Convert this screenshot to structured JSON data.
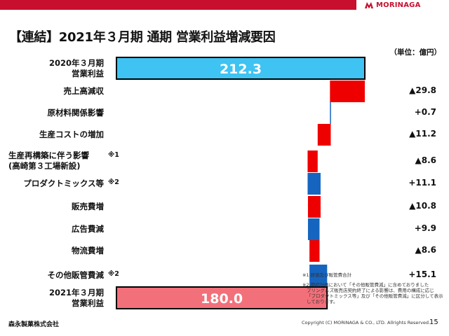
{
  "header": {
    "brand": "MORINAGA",
    "brand_color": "#c8102e",
    "logo_icon": "morinaga-angel-mark-icon"
  },
  "slide_title": "【連結】2021年３月期 通期 営業利益増減要因",
  "unit": "（単位：億円）",
  "rows": [
    {
      "label_lines": [
        "2020年３月期",
        "営業利益"
      ],
      "value_label": ""
    },
    {
      "label_lines": [
        "売上高減収"
      ],
      "value_label": "▲29.8"
    },
    {
      "label_lines": [
        "原材料関係影響"
      ],
      "value_label": "+0.7"
    },
    {
      "label_lines": [
        "生産コストの増加"
      ],
      "value_label": "▲11.2"
    },
    {
      "label_lines": [
        "生産再構築に伴う影響",
        "(高崎第３工場新設)"
      ],
      "note": "※1",
      "value_label": "▲8.6"
    },
    {
      "label_lines": [
        "プロダクトミックス等"
      ],
      "note": "※2",
      "value_label": "+11.1"
    },
    {
      "label_lines": [
        "販売費増"
      ],
      "value_label": "▲10.8"
    },
    {
      "label_lines": [
        "広告費減"
      ],
      "value_label": "+9.9"
    },
    {
      "label_lines": [
        "物流費増"
      ],
      "value_label": "▲8.6"
    },
    {
      "label_lines": [
        "その他販管費減"
      ],
      "note": "※2",
      "value_label": "+15.1"
    },
    {
      "label_lines": [
        "2021年３月期",
        "営業利益"
      ],
      "value_label": ""
    }
  ],
  "chart_data": {
    "type": "waterfall",
    "start": {
      "name": "2020年３月期 営業利益",
      "value": 212.3,
      "label": "212.3"
    },
    "steps": [
      {
        "name": "売上高減収",
        "value": -29.8
      },
      {
        "name": "原材料関係影響",
        "value": 0.7
      },
      {
        "name": "生産コストの増加",
        "value": -11.2
      },
      {
        "name": "生産再構築に伴う影響(高崎第３工場新設)",
        "value": -8.6
      },
      {
        "name": "プロダクトミックス等",
        "value": 11.1
      },
      {
        "name": "販売費増",
        "value": -10.8
      },
      {
        "name": "広告費減",
        "value": 9.9
      },
      {
        "name": "物流費増",
        "value": -8.6
      },
      {
        "name": "その他販管費減",
        "value": 15.1
      }
    ],
    "end": {
      "name": "2021年３月期 営業利益",
      "value": 180.0,
      "label": "180.0"
    },
    "colors": {
      "start_total": "#3ec3f2",
      "end_total": "#f2707a",
      "decrease": "#ee0000",
      "increase": "#1565c0"
    }
  },
  "footnotes": [
    "※1.原価及び販管費合計",
    "※2.期初計画において「その他販管費減」に含めておりました",
    "プリングルズ販売店契約終了による影響は、費用の構成に応じ",
    "「プロダクトミックス等」及び「その他販管費減」に区分して表示",
    "しております。"
  ],
  "footer": {
    "company": "森永製菓株式会社",
    "copyright": "Copyright (C) MORINAGA & CO., LTD. Allrights Reserved.",
    "page": "15"
  }
}
